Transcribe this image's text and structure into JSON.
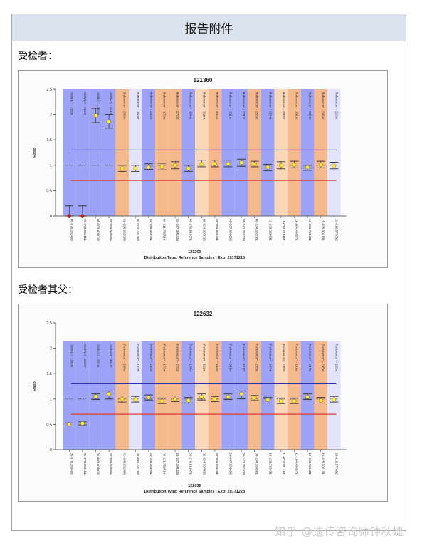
{
  "document": {
    "title": "报告附件",
    "sections": [
      {
        "label": "受检者："
      },
      {
        "label": "受检者其父："
      }
    ],
    "watermark": "知乎 @遗传咨询师钟秋婕"
  },
  "colors": {
    "band_blue": "#9da3f7",
    "band_orange": "#f5b98c",
    "band_light_orange": "#fad7b9",
    "band_lavender": "#e3e4fb",
    "upper_threshold": "#2b2fb0",
    "lower_threshold": "#e03c3c",
    "point_fill": "#ffee33",
    "point_deleted": "#d01030",
    "header_bg": "#dbe3ef"
  },
  "chart_data": [
    {
      "type": "scatter",
      "title": "121360",
      "xlabel": "121360",
      "subtitle": "Distribution Type: Reference Samples | Exp: 20171215",
      "ylabel": "Ratio",
      "ylim": [
        0,
        2.5
      ],
      "yticks": [
        "0",
        "0.5",
        "1",
        "1.5",
        "2",
        "2.5"
      ],
      "thresholds": {
        "upper": 1.3,
        "lower": 0.7,
        "baseline": 1.0
      },
      "grid": false,
      "probes": [
        "SMN1-7 - 183nt",
        "SMN1-8 - 219nt",
        "SMN2-7 - 263nt",
        "SMN2-8 - 301nt",
        "Reference* - 208nt",
        "Reference* - 163nt",
        "Reference* - 292nt",
        "Reference* - 172nt",
        "Reference* - 272nt",
        "Reference* - 154nt",
        "Reference* - 311nt",
        "Reference* - 342nt",
        "Reference* - 331nt",
        "Reference* - 321nt",
        "Reference* - 255nt",
        "Reference* - 264nt",
        "Reference* - 200nt",
        "Reference* - 191nt",
        "Reference* - 237nt",
        "Reference* - 245nt",
        "Reference* - 228nt"
      ],
      "categories": [
        "05-070.283495",
        "05-070.284161",
        "05-069.408016",
        "05-069.408802",
        "01-208.032366",
        "03-060.792768",
        "03-158.368991",
        "04-111.759610",
        "04-187.390323",
        "05-176.616671",
        "06-024.397035",
        "06-065.588251",
        "06-067.650836",
        "06-141.781923",
        "09-134.163561",
        "10-123.236831",
        "11-033.331464",
        "11-104.406371",
        "12-101.736481",
        "15-025.902131",
        "20-018.577692"
      ],
      "bands": [
        "blue",
        "blue",
        "blue",
        "blue",
        "orange",
        "lavender",
        "blue",
        "orange",
        "orange",
        "blue",
        "light_orange",
        "orange",
        "blue",
        "blue",
        "orange",
        "blue",
        "light_orange",
        "orange",
        "blue",
        "orange",
        "lavender"
      ],
      "values": [
        0.0,
        0.0,
        1.98,
        1.86,
        0.94,
        0.94,
        0.96,
        0.97,
        1.0,
        0.94,
        1.02,
        1.03,
        1.03,
        1.05,
        1.02,
        0.96,
        1.0,
        1.01,
        0.96,
        1.01,
        0.99
      ],
      "err_low": [
        0.0,
        0.0,
        1.84,
        1.73,
        0.88,
        0.88,
        0.92,
        0.91,
        0.93,
        0.88,
        0.97,
        0.97,
        0.97,
        0.98,
        0.97,
        0.89,
        0.93,
        0.95,
        0.9,
        0.95,
        0.93
      ],
      "err_high": [
        0.2,
        0.2,
        2.12,
        2.0,
        1.0,
        1.0,
        1.03,
        1.04,
        1.07,
        1.0,
        1.1,
        1.1,
        1.1,
        1.12,
        1.08,
        1.02,
        1.07,
        1.08,
        1.0,
        1.08,
        1.06
      ]
    },
    {
      "type": "scatter",
      "title": "122632",
      "xlabel": "122632",
      "subtitle": "Distribution Type: Reference Samples | Exp: 20171228",
      "ylabel": "Ratio",
      "ylim": [
        0,
        2.5
      ],
      "yticks": [
        "0",
        "0.5",
        "1",
        "1.5",
        "2",
        "2.5"
      ],
      "thresholds": {
        "upper": 1.3,
        "lower": 0.7,
        "baseline": 1.0
      },
      "grid": false,
      "probes": [
        "SMN1-7 - 183nt",
        "SMN1-8 - 219nt",
        "SMN2-7 - 263nt",
        "SMN2-8 - 301nt",
        "Reference* - 208nt",
        "Reference* - 163nt",
        "Reference* - 292nt",
        "Reference* - 172nt",
        "Reference* - 272nt",
        "Reference* - 154nt",
        "Reference* - 311nt",
        "Reference* - 342nt",
        "Reference* - 331nt",
        "Reference* - 321nt",
        "Reference* - 255nt",
        "Reference* - 264nt",
        "Reference* - 200nt",
        "Reference* - 191nt",
        "Reference* - 237nt",
        "Reference* - 245nt",
        "Reference* - 228nt"
      ],
      "categories": [
        "05-070.283495",
        "05-070.284161",
        "05-069.408016",
        "05-069.408802",
        "01-208.032366",
        "03-060.792768",
        "03-158.368991",
        "04-111.759610",
        "04-187.390323",
        "05-176.616671",
        "06-024.397035",
        "06-065.588251",
        "06-067.650836",
        "06-141.781923",
        "09-134.163561",
        "10-123.236831",
        "11-033.331464",
        "11-104.406371",
        "12-101.736481",
        "15-025.902131",
        "20-018.577692"
      ],
      "bands": [
        "blue",
        "blue",
        "blue",
        "blue",
        "orange",
        "lavender",
        "blue",
        "orange",
        "orange",
        "blue",
        "light_orange",
        "orange",
        "blue",
        "blue",
        "orange",
        "blue",
        "light_orange",
        "orange",
        "blue",
        "orange",
        "lavender"
      ],
      "values": [
        0.5,
        0.52,
        1.05,
        1.1,
        1.0,
        0.99,
        1.03,
        0.96,
        1.0,
        0.97,
        1.04,
        1.0,
        1.04,
        1.1,
        1.02,
        0.98,
        0.96,
        0.96,
        1.04,
        0.97,
        0.99
      ],
      "err_low": [
        0.47,
        0.49,
        0.99,
        1.0,
        0.94,
        0.94,
        0.98,
        0.91,
        0.95,
        0.92,
        0.98,
        0.95,
        0.99,
        1.01,
        0.97,
        0.92,
        0.91,
        0.91,
        0.99,
        0.92,
        0.94
      ],
      "err_high": [
        0.53,
        0.55,
        1.1,
        1.16,
        1.06,
        1.05,
        1.08,
        1.02,
        1.06,
        1.03,
        1.1,
        1.05,
        1.1,
        1.16,
        1.07,
        1.03,
        1.02,
        1.02,
        1.1,
        1.03,
        1.05
      ]
    }
  ]
}
